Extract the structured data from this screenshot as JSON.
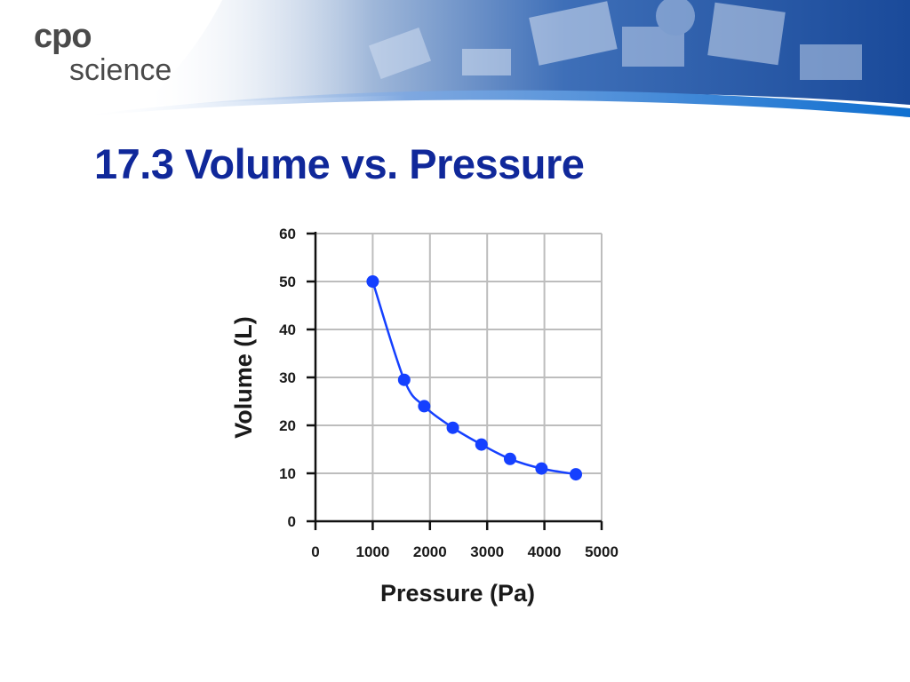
{
  "logo": {
    "brand": "cpo",
    "subbrand": "science"
  },
  "slide": {
    "title": "17.3 Volume vs. Pressure"
  },
  "colors": {
    "title": "#10289a",
    "series": "#1540ff",
    "grid": "#bdbdbd",
    "banner": "#1f5fae"
  },
  "chart_data": {
    "type": "scatter",
    "title": "",
    "xlabel": "Pressure (Pa)",
    "ylabel": "Volume (L)",
    "xlim": [
      0,
      5000
    ],
    "ylim": [
      0,
      60
    ],
    "xticks": [
      0,
      1000,
      2000,
      3000,
      4000,
      5000
    ],
    "yticks": [
      0,
      10,
      20,
      30,
      40,
      50,
      60
    ],
    "grid": true,
    "legend": "none",
    "series": [
      {
        "points": [
          {
            "x": 1000,
            "y": 50
          },
          {
            "x": 1550,
            "y": 29.5
          },
          {
            "x": 1900,
            "y": 24
          },
          {
            "x": 2400,
            "y": 19.5
          },
          {
            "x": 2900,
            "y": 16
          },
          {
            "x": 3400,
            "y": 13
          },
          {
            "x": 3950,
            "y": 11
          },
          {
            "x": 4550,
            "y": 9.8
          }
        ],
        "trendline": "smooth"
      }
    ]
  }
}
